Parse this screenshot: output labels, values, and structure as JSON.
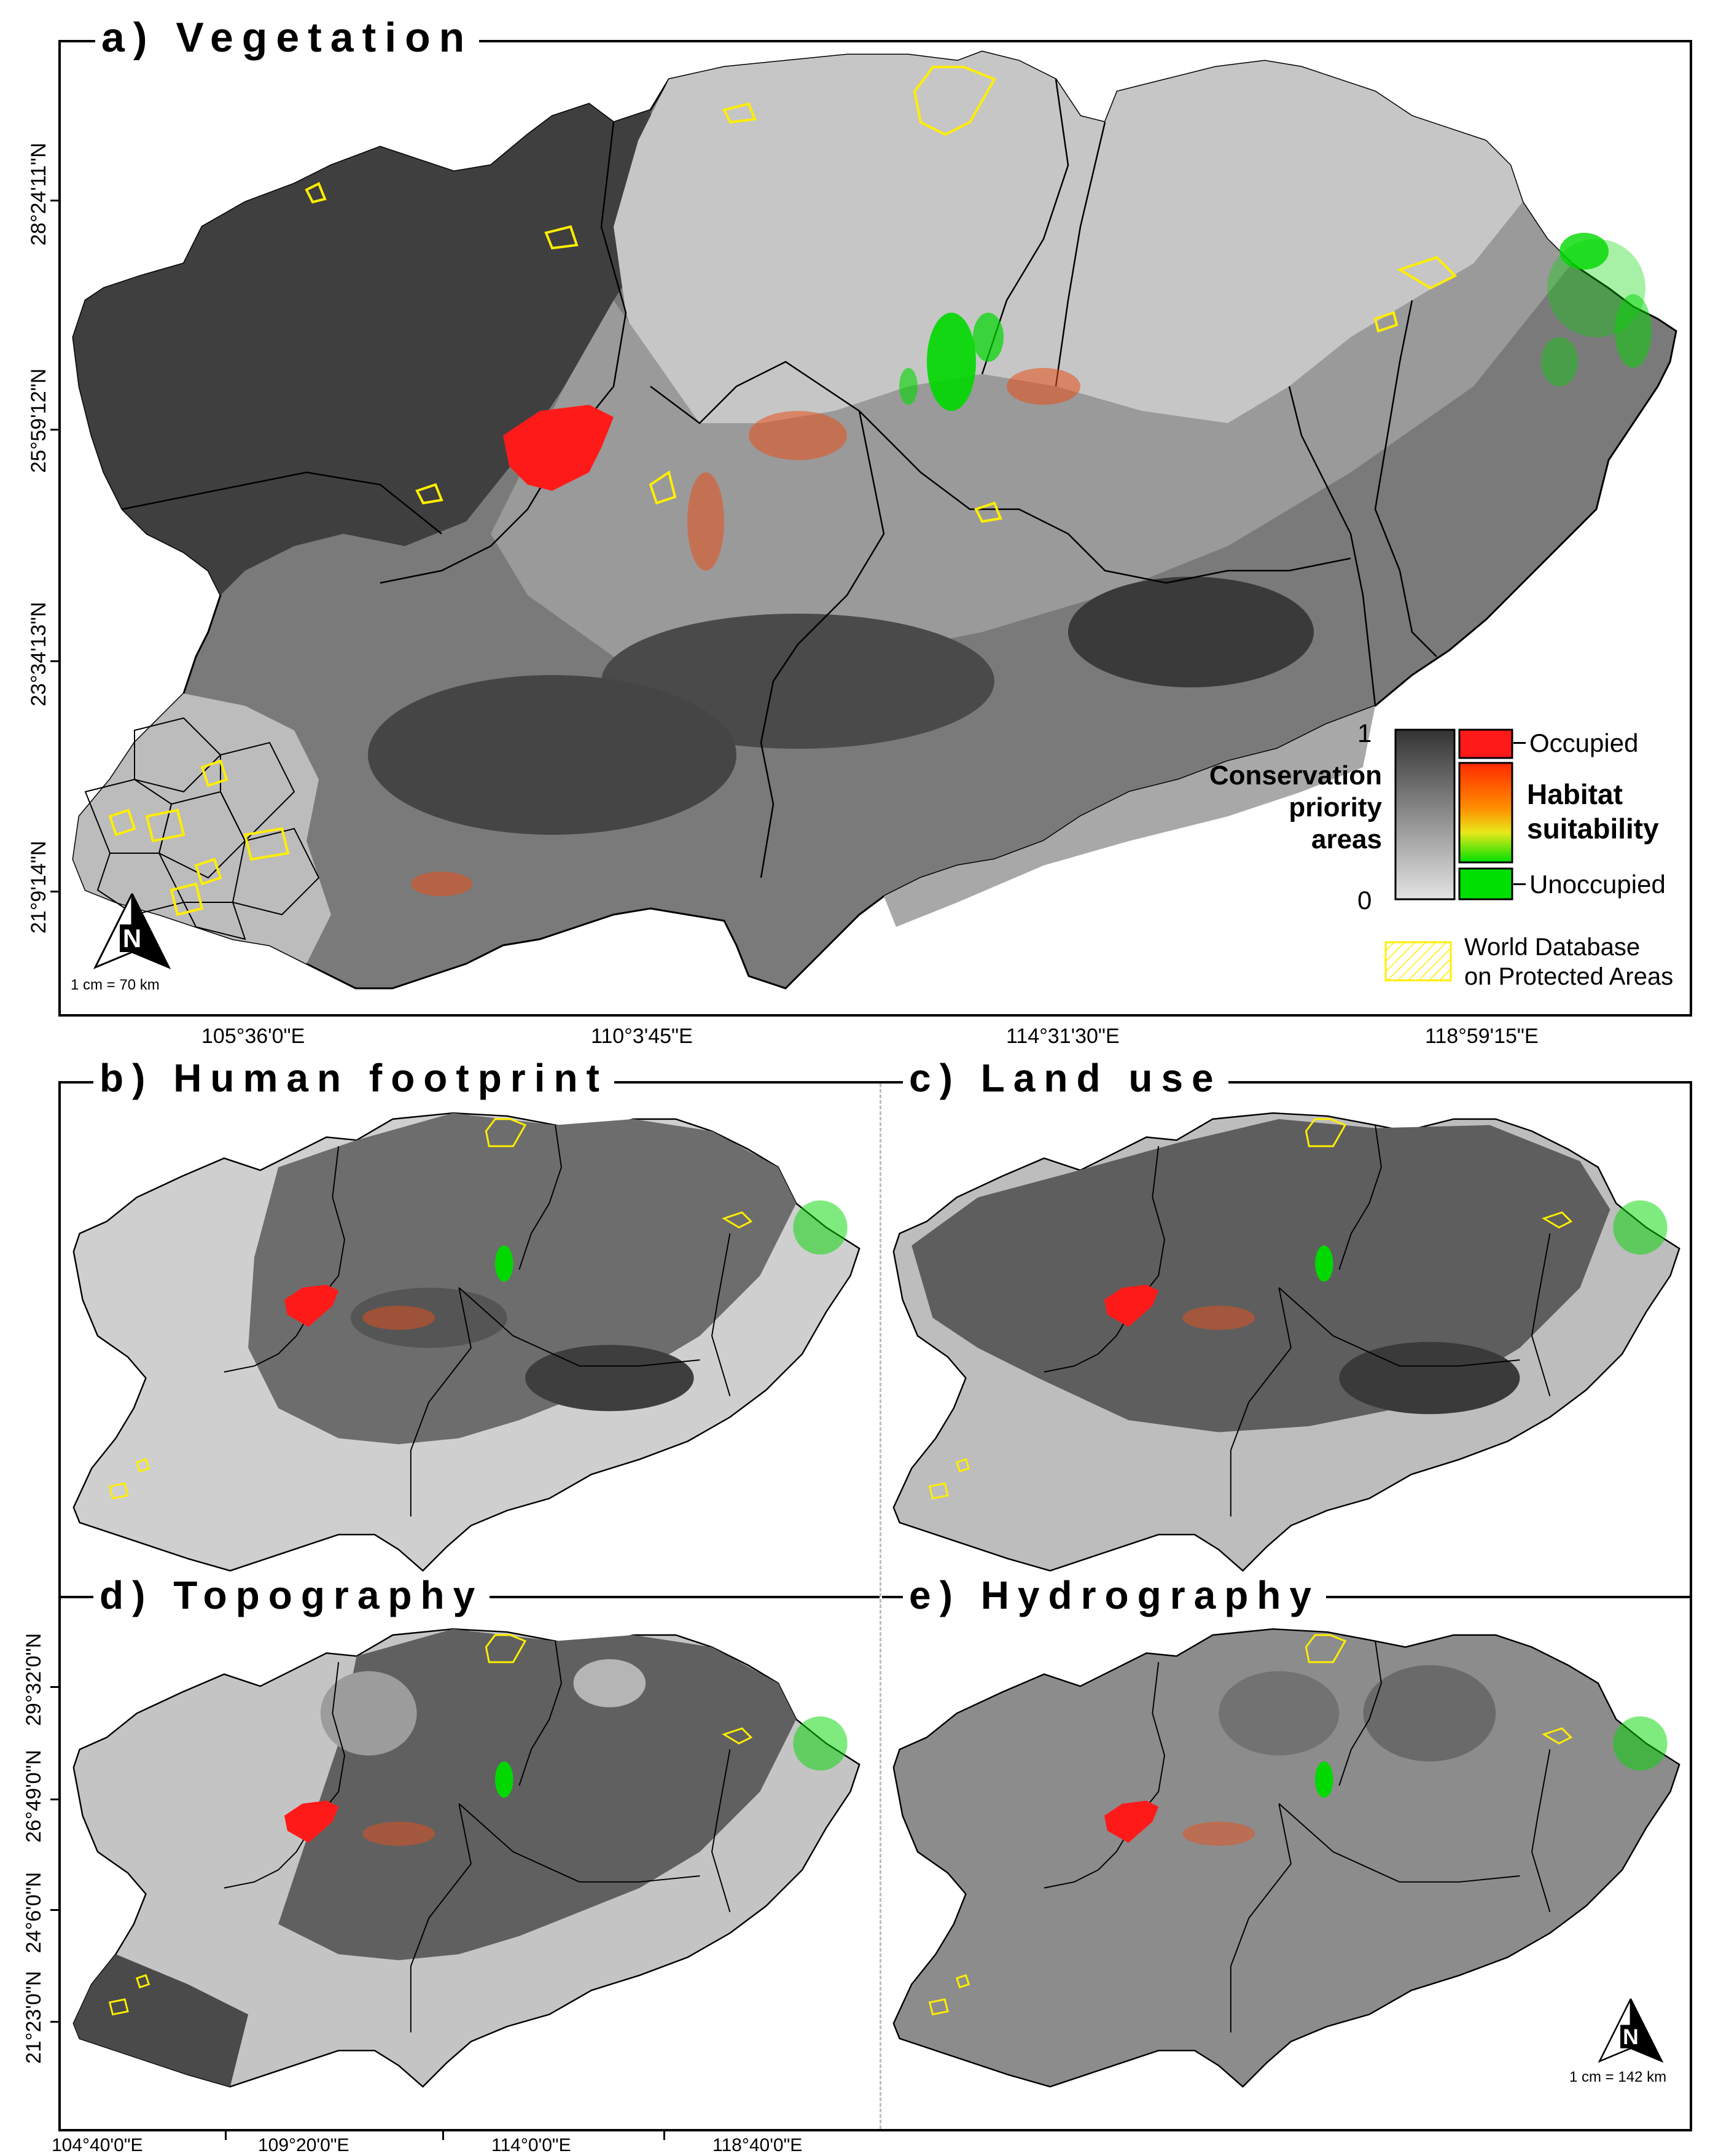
{
  "panels": {
    "a": {
      "title": "a) Vegetation"
    },
    "b": {
      "title": "b) Human footprint"
    },
    "c": {
      "title": "c) Land use"
    },
    "d": {
      "title": "d) Topography"
    },
    "e": {
      "title": "e) Hydrography"
    }
  },
  "top_map": {
    "lat_labels": [
      "28°24'11\"N",
      "25°59'12\"N",
      "23°34'13\"N",
      "21°9'14\"N"
    ],
    "lon_labels": [
      "105°36'0\"E",
      "110°3'45\"E",
      "114°31'30\"E",
      "118°59'15\"E"
    ],
    "scale": "1 cm = 70 km",
    "north_label": "N"
  },
  "bottom_maps": {
    "lat_labels": [
      "29°32'0\"N",
      "26°49'0\"N",
      "24°6'0\"N",
      "21°23'0\"N"
    ],
    "lon_labels": [
      "104°40'0\"E",
      "109°20'0\"E",
      "114°0'0\"E",
      "118°40'0\"E"
    ],
    "scale": "1 cm = 142 km",
    "north_label": "N"
  },
  "legend": {
    "priority_title_lines": [
      "Conservation",
      "priority",
      "areas"
    ],
    "priority_max": "1",
    "priority_min": "0",
    "occupied": "Occupied",
    "unoccupied": "Unoccupied",
    "suitability_title_lines": [
      "Habitat",
      "suitability"
    ],
    "wdpa_lines": [
      "World Database",
      "on Protected Areas"
    ]
  },
  "colors": {
    "occupied": "#ff1a1a",
    "suitability_high": "#ff6a00",
    "suitability_mid": "#e3e31a",
    "suitability_low": "#00e000",
    "protected_outline": "#ffee00",
    "priority_high": "#333333",
    "priority_low": "#dcdcdc"
  }
}
